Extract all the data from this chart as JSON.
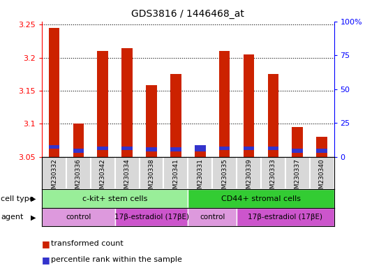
{
  "title": "GDS3816 / 1446468_at",
  "samples": [
    "GSM230332",
    "GSM230336",
    "GSM230342",
    "GSM230334",
    "GSM230338",
    "GSM230341",
    "GSM230331",
    "GSM230335",
    "GSM230339",
    "GSM230333",
    "GSM230337",
    "GSM230340"
  ],
  "red_values": [
    3.245,
    3.1,
    3.21,
    3.215,
    3.158,
    3.175,
    3.058,
    3.21,
    3.205,
    3.175,
    3.095,
    3.08
  ],
  "blue_heights": [
    0.006,
    0.006,
    0.006,
    0.006,
    0.006,
    0.006,
    0.01,
    0.006,
    0.006,
    0.006,
    0.006,
    0.006
  ],
  "blue_bottoms": [
    3.062,
    3.056,
    3.06,
    3.06,
    3.058,
    3.058,
    3.058,
    3.06,
    3.06,
    3.06,
    3.056,
    3.056
  ],
  "ylim_left": [
    3.05,
    3.255
  ],
  "ylim_right": [
    0,
    100
  ],
  "yticks_left": [
    3.05,
    3.1,
    3.15,
    3.2,
    3.25
  ],
  "ytick_labels_left": [
    "3.05",
    "3.1",
    "3.15",
    "3.2",
    "3.25"
  ],
  "yticks_right": [
    0,
    25,
    50,
    75,
    100
  ],
  "ytick_labels_right": [
    "0",
    "25",
    "50",
    "75",
    "100%"
  ],
  "cell_type_groups": [
    {
      "label": "c-kit+ stem cells",
      "start": 0,
      "end": 6,
      "color": "#99EE99"
    },
    {
      "label": "CD44+ stromal cells",
      "start": 6,
      "end": 12,
      "color": "#33CC33"
    }
  ],
  "agent_groups": [
    {
      "label": "control",
      "start": 0,
      "end": 3,
      "color": "#DD99DD"
    },
    {
      "label": "17β-estradiol (17βE)",
      "start": 3,
      "end": 6,
      "color": "#CC55CC"
    },
    {
      "label": "control",
      "start": 6,
      "end": 8,
      "color": "#DD99DD"
    },
    {
      "label": "17β-estradiol (17βE)",
      "start": 8,
      "end": 12,
      "color": "#CC55CC"
    }
  ],
  "bar_width": 0.45,
  "red_color": "#CC2200",
  "blue_color": "#3333CC",
  "base_value": 3.05,
  "background_color": "#ffffff"
}
